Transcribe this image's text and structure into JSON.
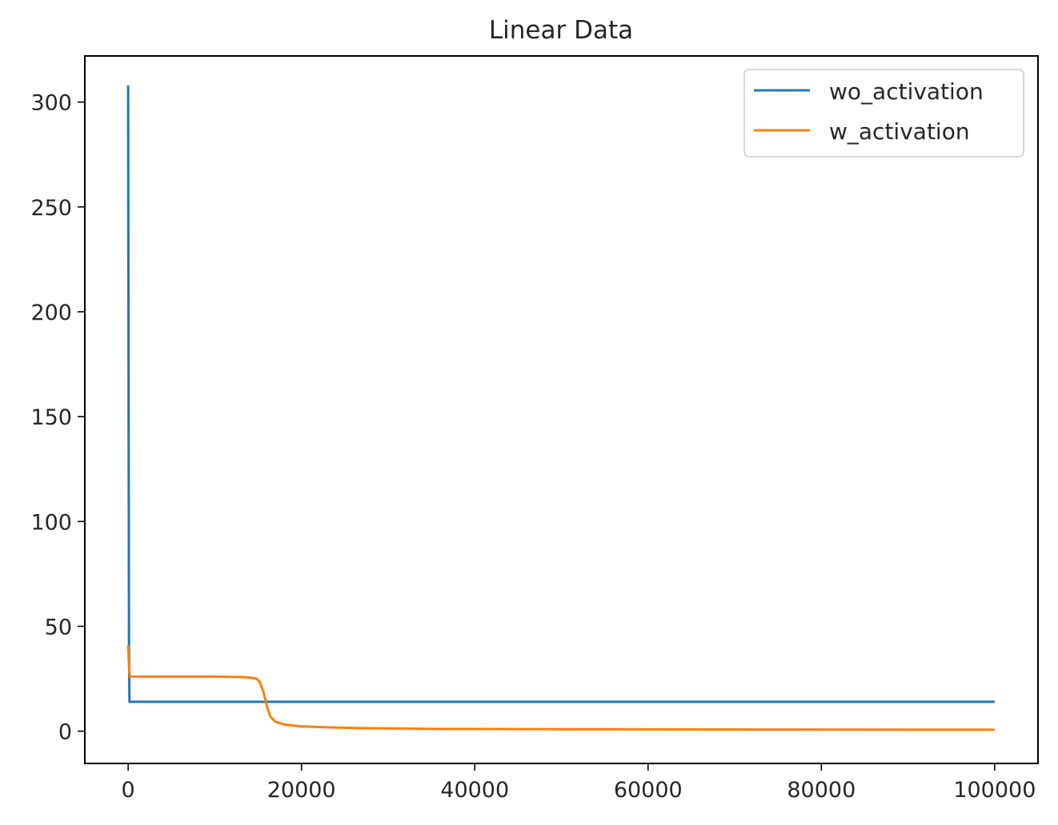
{
  "chart_data": {
    "type": "line",
    "title": "Linear Data",
    "xlabel": "",
    "ylabel": "",
    "xlim": [
      -5000,
      105000
    ],
    "ylim": [
      -15.4,
      322
    ],
    "xticks": [
      0,
      20000,
      40000,
      60000,
      80000,
      100000
    ],
    "yticks": [
      0,
      50,
      100,
      150,
      200,
      250,
      300
    ],
    "grid": false,
    "legend_position": "top-right",
    "series": [
      {
        "name": "wo_activation",
        "color": "#1f77b4",
        "points": [
          [
            0,
            308
          ],
          [
            50,
            150
          ],
          [
            100,
            40
          ],
          [
            150,
            14
          ],
          [
            1000,
            14
          ],
          [
            100000,
            14
          ]
        ]
      },
      {
        "name": "w_activation",
        "color": "#ff7f0e",
        "points": [
          [
            0,
            41
          ],
          [
            100,
            31
          ],
          [
            200,
            26
          ],
          [
            500,
            26
          ],
          [
            5000,
            26
          ],
          [
            10000,
            26
          ],
          [
            13000,
            25.8
          ],
          [
            14000,
            25.6
          ],
          [
            14800,
            25
          ],
          [
            15200,
            23.5
          ],
          [
            15600,
            19
          ],
          [
            16000,
            12
          ],
          [
            16400,
            7
          ],
          [
            17000,
            4.5
          ],
          [
            18000,
            3.2
          ],
          [
            20000,
            2.3
          ],
          [
            23000,
            1.8
          ],
          [
            27000,
            1.4
          ],
          [
            35000,
            1.1
          ],
          [
            50000,
            0.9
          ],
          [
            70000,
            0.8
          ],
          [
            100000,
            0.7
          ]
        ]
      }
    ]
  }
}
